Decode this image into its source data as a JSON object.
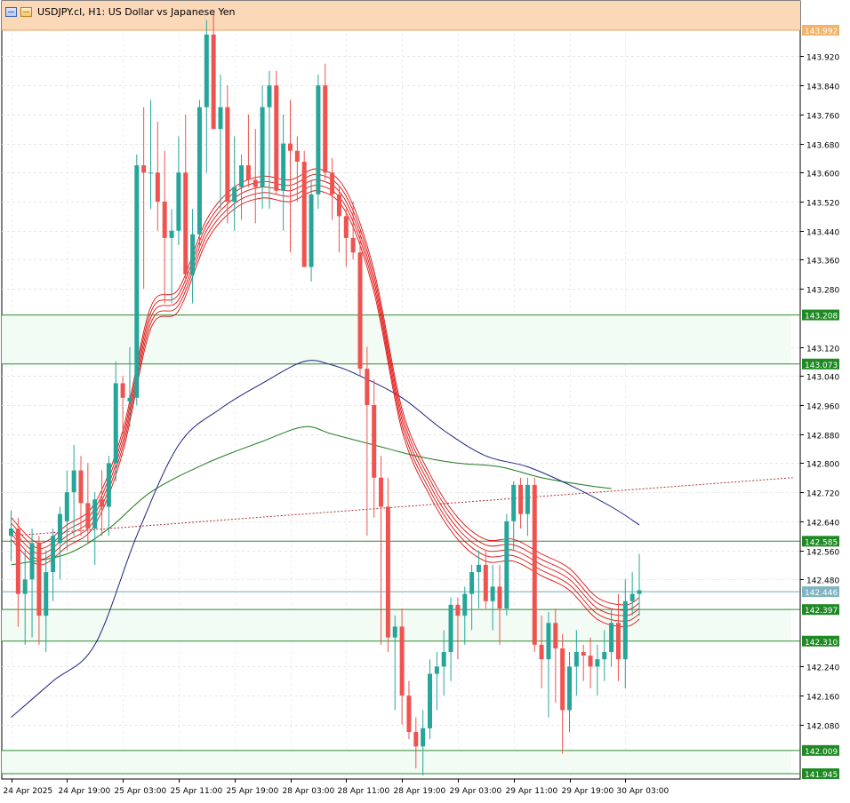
{
  "header": {
    "title": "USDJPY.cl, H1:  US Dollar vs Japanese Yen",
    "icons": [
      "chart-window-icon",
      "one-click-trading-icon"
    ]
  },
  "colors": {
    "bull": "#26a69a",
    "bear": "#ef5350",
    "ma_blue": "#1a237e",
    "ma_green": "#1b7a1b",
    "ribbon": "#e01010",
    "zone_fill": "#f2fbf4",
    "zone_line": "#2e8b2e",
    "top_band": "#fbd8b8",
    "price_line": "#6fa8b6",
    "trend": "#b03030"
  },
  "chart_data": {
    "type": "candlestick",
    "symbol": "USDJPY.cl",
    "timeframe": "H1",
    "title": "US Dollar vs Japanese Yen",
    "ylim": [
      141.9,
      144.06
    ],
    "y_ticks": [
      "143.920",
      "143.840",
      "143.760",
      "143.680",
      "143.600",
      "143.520",
      "143.440",
      "143.360",
      "143.280",
      "143.120",
      "143.040",
      "142.960",
      "142.880",
      "142.800",
      "142.720",
      "142.640",
      "142.560",
      "142.480",
      "142.240",
      "142.160",
      "142.080"
    ],
    "x_labels": [
      {
        "i": 0,
        "label": "24 Apr 2025"
      },
      {
        "i": 8,
        "label": "24 Apr 19:00"
      },
      {
        "i": 16,
        "label": "25 Apr 03:00"
      },
      {
        "i": 24,
        "label": "25 Apr 11:00"
      },
      {
        "i": 32,
        "label": "25 Apr 19:00"
      },
      {
        "i": 40,
        "label": "28 Apr 03:00"
      },
      {
        "i": 48,
        "label": "28 Apr 11:00"
      },
      {
        "i": 56,
        "label": "28 Apr 19:00"
      },
      {
        "i": 64,
        "label": "29 Apr 03:00"
      },
      {
        "i": 72,
        "label": "29 Apr 11:00"
      },
      {
        "i": 80,
        "label": "29 Apr 19:00"
      },
      {
        "i": 88,
        "label": "30 Apr 03:00"
      }
    ],
    "candles": [
      [
        142.6,
        142.67,
        142.53,
        142.62
      ],
      [
        142.62,
        142.65,
        142.35,
        142.44
      ],
      [
        142.44,
        142.56,
        142.3,
        142.48
      ],
      [
        142.48,
        142.62,
        142.32,
        142.58
      ],
      [
        142.58,
        142.6,
        142.3,
        142.38
      ],
      [
        142.38,
        142.56,
        142.28,
        142.5
      ],
      [
        142.5,
        142.62,
        142.42,
        142.6
      ],
      [
        142.58,
        142.68,
        142.48,
        142.66
      ],
      [
        142.64,
        142.78,
        142.56,
        142.72
      ],
      [
        142.72,
        142.85,
        142.6,
        142.78
      ],
      [
        142.78,
        142.82,
        142.6,
        142.69
      ],
      [
        142.69,
        142.8,
        142.58,
        142.62
      ],
      [
        142.62,
        142.72,
        142.52,
        142.7
      ],
      [
        142.7,
        142.78,
        142.6,
        142.68
      ],
      [
        142.68,
        142.82,
        142.6,
        142.8
      ],
      [
        142.8,
        143.08,
        142.75,
        143.02
      ],
      [
        143.02,
        143.04,
        142.88,
        142.98
      ],
      [
        142.97,
        143.12,
        142.9,
        142.98
      ],
      [
        142.98,
        143.65,
        142.96,
        143.62
      ],
      [
        143.62,
        143.78,
        143.28,
        143.6
      ],
      [
        143.6,
        143.8,
        143.5,
        143.6
      ],
      [
        143.6,
        143.74,
        143.44,
        143.52
      ],
      [
        143.52,
        143.66,
        143.24,
        143.42
      ],
      [
        143.42,
        143.5,
        143.24,
        143.44
      ],
      [
        143.44,
        143.7,
        143.4,
        143.6
      ],
      [
        143.6,
        143.76,
        143.3,
        143.32
      ],
      [
        143.32,
        143.5,
        143.24,
        143.43
      ],
      [
        143.43,
        143.8,
        143.4,
        143.78
      ],
      [
        143.78,
        144.02,
        143.6,
        143.98
      ],
      [
        143.98,
        144.04,
        143.72,
        143.72
      ],
      [
        143.72,
        143.87,
        143.5,
        143.78
      ],
      [
        143.78,
        143.84,
        143.46,
        143.52
      ],
      [
        143.52,
        143.7,
        143.44,
        143.56
      ],
      [
        143.56,
        143.65,
        143.47,
        143.62
      ],
      [
        143.62,
        143.76,
        143.56,
        143.58
      ],
      [
        143.58,
        143.72,
        143.46,
        143.56
      ],
      [
        143.56,
        143.84,
        143.5,
        143.78
      ],
      [
        143.78,
        143.88,
        143.5,
        143.84
      ],
      [
        143.84,
        143.88,
        143.54,
        143.55
      ],
      [
        143.55,
        143.76,
        143.44,
        143.68
      ],
      [
        143.68,
        143.8,
        143.38,
        143.66
      ],
      [
        143.66,
        143.7,
        143.52,
        143.63
      ],
      [
        143.63,
        143.66,
        143.36,
        143.34
      ],
      [
        143.34,
        143.58,
        143.3,
        143.54
      ],
      [
        143.54,
        143.87,
        143.5,
        143.84
      ],
      [
        143.84,
        143.9,
        143.58,
        143.6
      ],
      [
        143.6,
        143.64,
        143.47,
        143.54
      ],
      [
        143.54,
        143.56,
        143.38,
        143.48
      ],
      [
        143.48,
        143.5,
        143.34,
        143.42
      ],
      [
        143.42,
        143.52,
        143.36,
        143.38
      ],
      [
        143.38,
        143.44,
        143.04,
        143.06
      ],
      [
        143.06,
        143.12,
        142.6,
        142.96
      ],
      [
        142.96,
        143.03,
        142.65,
        142.76
      ],
      [
        142.76,
        142.82,
        142.3,
        142.68
      ],
      [
        142.68,
        142.76,
        142.28,
        142.32
      ],
      [
        142.32,
        142.38,
        142.12,
        142.35
      ],
      [
        142.35,
        142.4,
        142.08,
        142.16
      ],
      [
        142.16,
        142.2,
        142.04,
        142.06
      ],
      [
        142.06,
        142.1,
        141.96,
        142.02
      ],
      [
        142.02,
        142.12,
        141.94,
        142.07
      ],
      [
        142.07,
        142.26,
        142.04,
        142.22
      ],
      [
        142.22,
        142.28,
        142.12,
        142.24
      ],
      [
        142.24,
        142.34,
        142.16,
        142.28
      ],
      [
        142.28,
        142.43,
        142.2,
        142.41
      ],
      [
        142.41,
        142.43,
        142.26,
        142.38
      ],
      [
        142.38,
        142.46,
        142.3,
        142.44
      ],
      [
        142.44,
        142.52,
        142.34,
        142.5
      ],
      [
        142.5,
        142.56,
        142.4,
        142.52
      ],
      [
        142.52,
        142.56,
        142.4,
        142.42
      ],
      [
        142.42,
        142.52,
        142.34,
        142.46
      ],
      [
        142.46,
        142.52,
        142.3,
        142.4
      ],
      [
        142.4,
        142.66,
        142.38,
        142.64
      ],
      [
        142.64,
        142.75,
        142.56,
        142.74
      ],
      [
        142.74,
        142.76,
        142.62,
        142.66
      ],
      [
        142.66,
        142.76,
        142.6,
        142.74
      ],
      [
        142.74,
        142.76,
        142.28,
        142.3
      ],
      [
        142.3,
        142.38,
        142.18,
        142.26
      ],
      [
        142.26,
        142.39,
        142.1,
        142.36
      ],
      [
        142.36,
        142.4,
        142.14,
        142.29
      ],
      [
        142.29,
        142.33,
        142.0,
        142.12
      ],
      [
        142.12,
        142.28,
        142.06,
        142.24
      ],
      [
        142.24,
        142.34,
        142.16,
        142.28
      ],
      [
        142.28,
        142.3,
        142.2,
        142.27
      ],
      [
        142.27,
        142.32,
        142.18,
        142.24
      ],
      [
        142.24,
        142.3,
        142.16,
        142.26
      ],
      [
        142.26,
        142.34,
        142.2,
        142.28
      ],
      [
        142.28,
        142.4,
        142.24,
        142.36
      ],
      [
        142.36,
        142.44,
        142.2,
        142.26
      ],
      [
        142.26,
        142.48,
        142.18,
        142.42
      ],
      [
        142.42,
        142.5,
        142.38,
        142.44
      ],
      [
        142.44,
        142.55,
        142.38,
        142.45
      ]
    ],
    "ma_blue": [
      [
        0,
        142.1
      ],
      [
        6,
        142.2
      ],
      [
        12,
        142.3
      ],
      [
        18,
        142.6
      ],
      [
        24,
        142.85
      ],
      [
        30,
        142.95
      ],
      [
        36,
        143.02
      ],
      [
        42,
        143.08
      ],
      [
        46,
        143.07
      ],
      [
        50,
        143.04
      ],
      [
        56,
        142.98
      ],
      [
        62,
        142.89
      ],
      [
        68,
        142.82
      ],
      [
        74,
        142.79
      ],
      [
        80,
        142.74
      ],
      [
        86,
        142.68
      ],
      [
        90,
        142.63
      ]
    ],
    "ma_green": [
      [
        0,
        142.52
      ],
      [
        8,
        142.55
      ],
      [
        14,
        142.62
      ],
      [
        20,
        142.72
      ],
      [
        28,
        142.8
      ],
      [
        36,
        142.86
      ],
      [
        42,
        142.9
      ],
      [
        46,
        142.88
      ],
      [
        52,
        142.85
      ],
      [
        58,
        142.82
      ],
      [
        64,
        142.8
      ],
      [
        70,
        142.79
      ],
      [
        76,
        142.76
      ],
      [
        82,
        142.74
      ],
      [
        86,
        142.73
      ]
    ],
    "ribbon_center": [
      [
        0,
        142.62
      ],
      [
        4,
        142.55
      ],
      [
        8,
        142.6
      ],
      [
        12,
        142.66
      ],
      [
        16,
        142.86
      ],
      [
        20,
        143.2
      ],
      [
        24,
        143.25
      ],
      [
        28,
        143.44
      ],
      [
        32,
        143.53
      ],
      [
        36,
        143.56
      ],
      [
        40,
        143.55
      ],
      [
        44,
        143.58
      ],
      [
        48,
        143.52
      ],
      [
        52,
        143.3
      ],
      [
        56,
        142.92
      ],
      [
        60,
        142.74
      ],
      [
        64,
        142.62
      ],
      [
        68,
        142.56
      ],
      [
        72,
        142.56
      ],
      [
        76,
        142.52
      ],
      [
        80,
        142.48
      ],
      [
        84,
        142.4
      ],
      [
        88,
        142.38
      ],
      [
        90,
        142.4
      ]
    ],
    "trendline": [
      [
        0,
        142.6
      ],
      [
        112,
        142.76
      ]
    ],
    "zones": [
      {
        "high": 143.208,
        "low": 143.073,
        "high_label": "143.208",
        "low_label": "143.073"
      },
      {
        "high": 142.397,
        "low": 142.31,
        "high_label": "142.397",
        "low_label": "142.310"
      },
      {
        "high": 142.009,
        "low": 141.945,
        "high_label": "142.009",
        "low_label": "141.945"
      }
    ],
    "levels": [
      {
        "value": 143.992,
        "label": "143.992",
        "kind": "top-band"
      },
      {
        "value": 142.585,
        "label": "142.585",
        "kind": "support"
      },
      {
        "value": 142.446,
        "label": "142.446",
        "kind": "current"
      }
    ]
  }
}
